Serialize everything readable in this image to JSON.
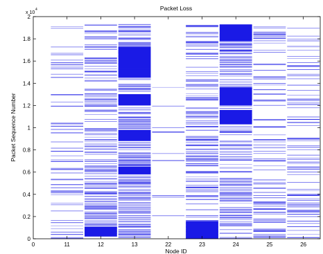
{
  "chart_data": {
    "type": "heatmap",
    "title": "Packet Loss",
    "xlabel": "Node ID",
    "ylabel": "Packet Sequence Number",
    "y_exponent": "x 10",
    "y_exponent_power": "4",
    "x_tick_first": "0",
    "categories": [
      "11",
      "12",
      "13",
      "22",
      "23",
      "24",
      "25",
      "26"
    ],
    "y_ticks": [
      "0",
      "0.2",
      "0.4",
      "0.6",
      "0.8",
      "1",
      "1.2",
      "1.4",
      "1.6",
      "1.8",
      "2"
    ],
    "ylim": [
      0,
      20000
    ],
    "y_data_max": 19300,
    "loss_density": [
      0.22,
      0.42,
      0.62,
      0.03,
      0.38,
      0.45,
      0.28,
      0.2
    ],
    "dense_blocks": {
      "13": [
        [
          15300,
          17300
        ],
        [
          14500,
          15300
        ],
        [
          12000,
          13000
        ],
        [
          8800,
          9800
        ],
        [
          5800,
          6500
        ]
      ],
      "23": [
        [
          0,
          1600
        ]
      ],
      "12": [
        [
          200,
          1100
        ]
      ],
      "24": [
        [
          12000,
          13600
        ],
        [
          10300,
          11600
        ],
        [
          17800,
          19300
        ]
      ]
    },
    "grid": false,
    "colors": {
      "loss_line": "#1a1ae6",
      "axis": "#000000"
    }
  }
}
